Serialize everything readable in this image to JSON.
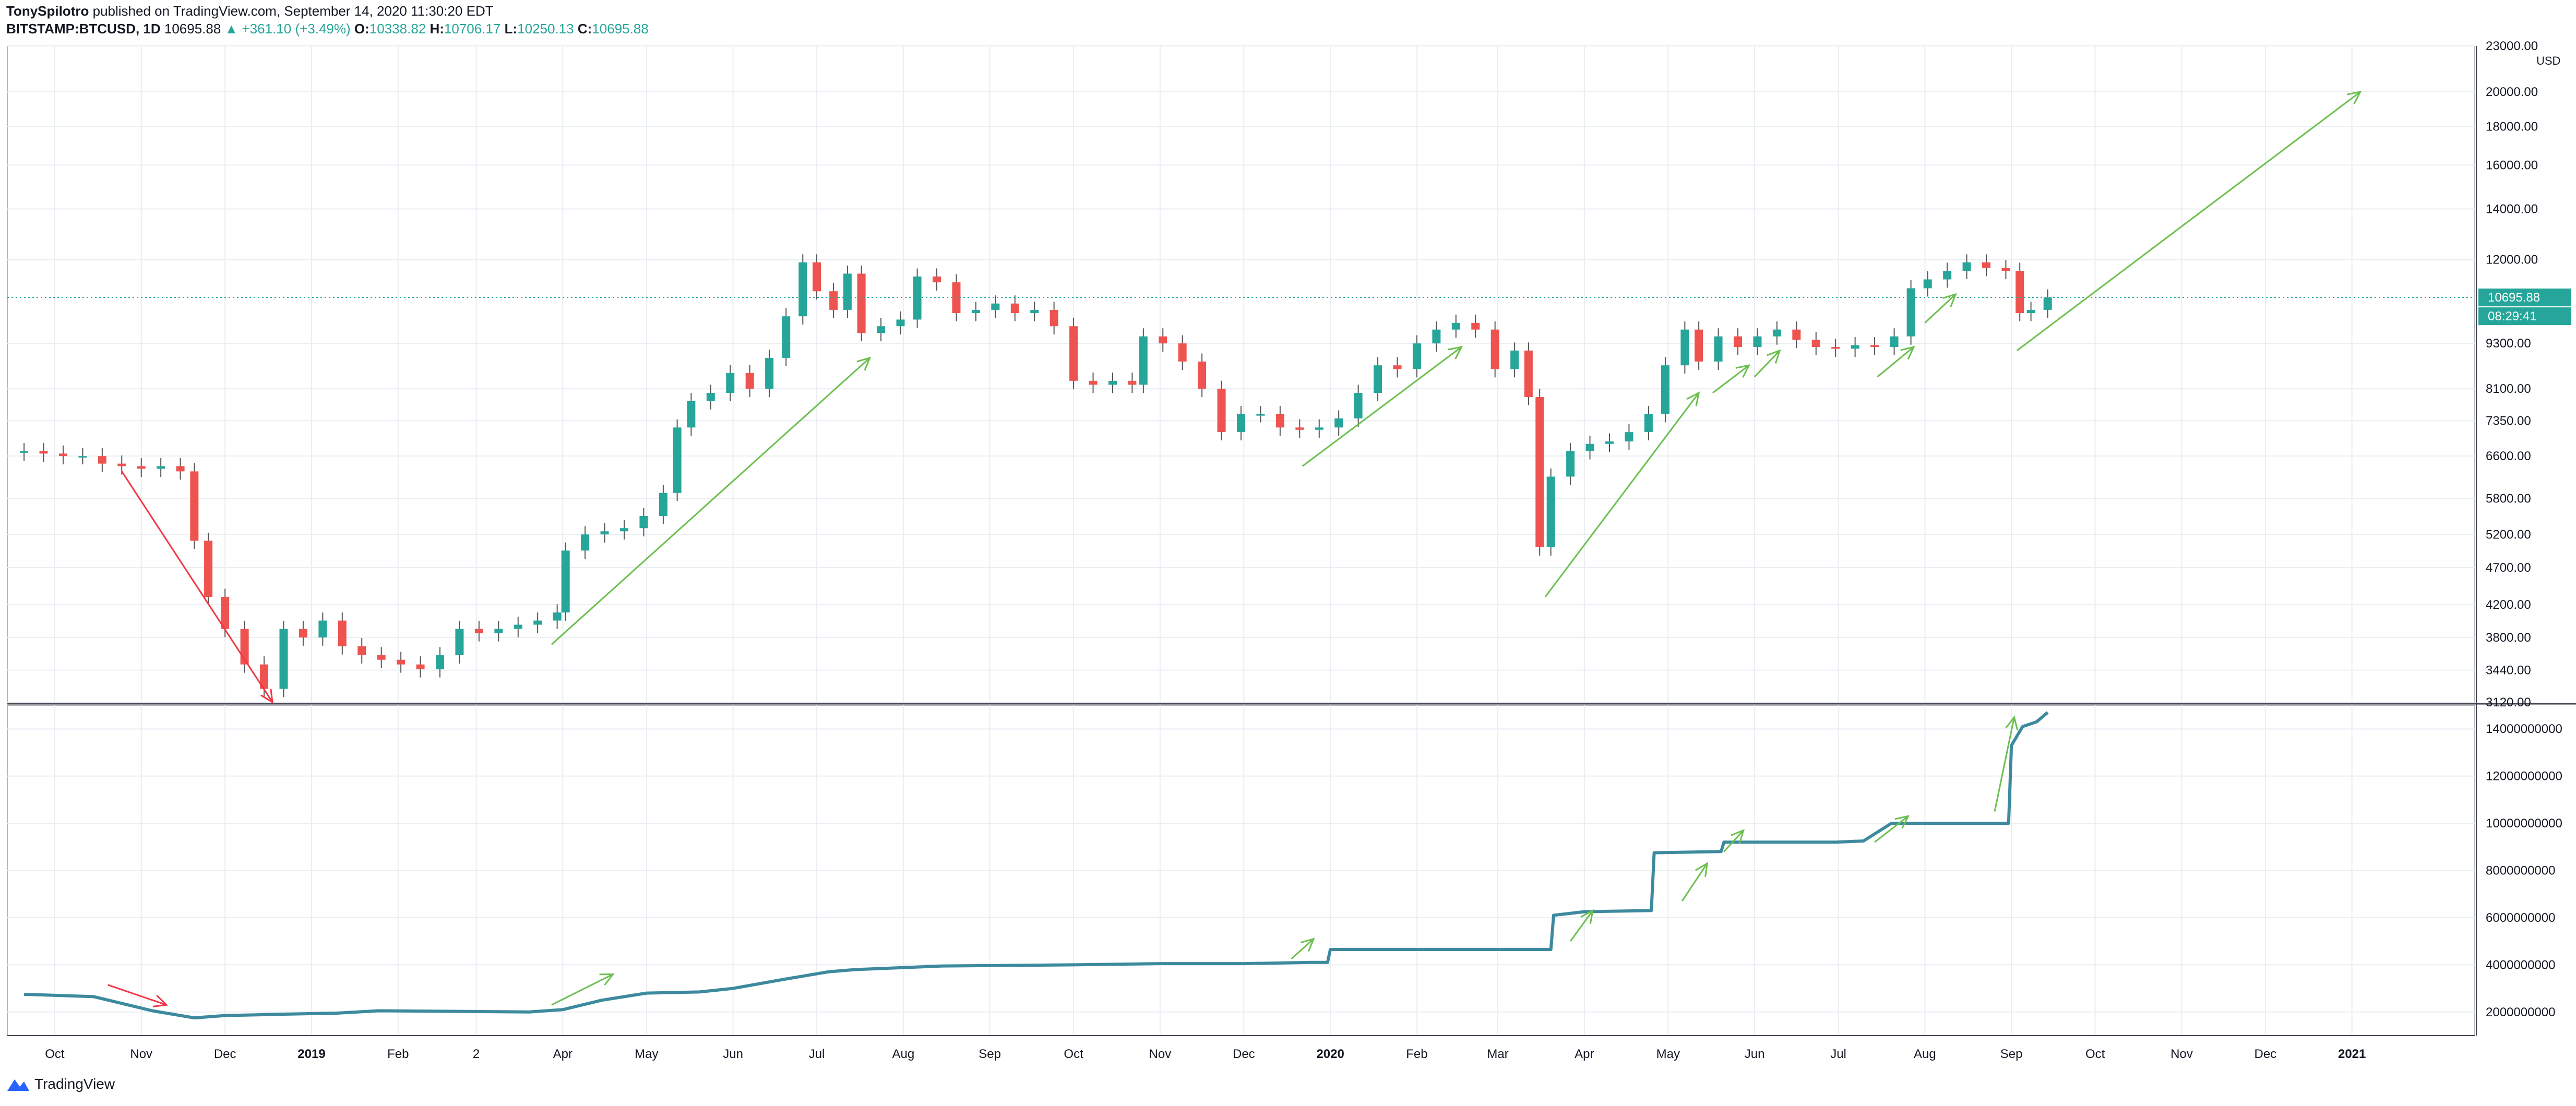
{
  "header": {
    "author": "TonySpilotro",
    "published": "published on TradingView.com, September 14, 2020 11:30:20 EDT",
    "symbol": "BITSTAMP:BTCUSD, 1D",
    "last": "10695.88",
    "change": "+361.10 (+3.49%)",
    "o_label": "O:",
    "o": "10338.82",
    "h_label": "H:",
    "h": "10706.17",
    "l_label": "L:",
    "l": "10250.13",
    "c_label": "C:",
    "c": "10695.88"
  },
  "footer": {
    "brand": "TradingView"
  },
  "chart_data": [
    {
      "type": "line",
      "subtype": "candlestick",
      "symbol": "BITSTAMP:BTCUSD",
      "interval": "1D",
      "scale": "log",
      "currency_label": "USD",
      "ylim": [
        3120,
        23000
      ],
      "y_ticks": [
        "23000.00",
        "20000.00",
        "18000.00",
        "16000.00",
        "14000.00",
        "12000.00",
        "9300.00",
        "8100.00",
        "7350.00",
        "6600.00",
        "5800.00",
        "5200.00",
        "4700.00",
        "4200.00",
        "3800.00",
        "3440.00",
        "3120.00"
      ],
      "last_price_label": "10695.88",
      "countdown_label": "08:29:41",
      "grid": true,
      "x": [
        "2018-09-20",
        "2018-09-27",
        "2018-10-04",
        "2018-10-11",
        "2018-10-18",
        "2018-10-25",
        "2018-11-01",
        "2018-11-08",
        "2018-11-15",
        "2018-11-20",
        "2018-11-25",
        "2018-12-01",
        "2018-12-08",
        "2018-12-15",
        "2018-12-22",
        "2018-12-29",
        "2019-01-05",
        "2019-01-12",
        "2019-01-19",
        "2019-01-26",
        "2019-02-02",
        "2019-02-09",
        "2019-02-16",
        "2019-02-23",
        "2019-03-02",
        "2019-03-09",
        "2019-03-16",
        "2019-03-23",
        "2019-03-30",
        "2019-04-02",
        "2019-04-09",
        "2019-04-16",
        "2019-04-23",
        "2019-04-30",
        "2019-05-07",
        "2019-05-12",
        "2019-05-17",
        "2019-05-24",
        "2019-05-31",
        "2019-06-07",
        "2019-06-14",
        "2019-06-20",
        "2019-06-26",
        "2019-07-01",
        "2019-07-07",
        "2019-07-12",
        "2019-07-17",
        "2019-07-24",
        "2019-07-31",
        "2019-08-06",
        "2019-08-13",
        "2019-08-20",
        "2019-08-27",
        "2019-09-03",
        "2019-09-10",
        "2019-09-17",
        "2019-09-24",
        "2019-10-01",
        "2019-10-08",
        "2019-10-15",
        "2019-10-22",
        "2019-10-26",
        "2019-11-02",
        "2019-11-09",
        "2019-11-16",
        "2019-11-23",
        "2019-11-30",
        "2019-12-07",
        "2019-12-14",
        "2019-12-21",
        "2019-12-28",
        "2020-01-04",
        "2020-01-11",
        "2020-01-18",
        "2020-01-25",
        "2020-02-01",
        "2020-02-08",
        "2020-02-15",
        "2020-02-22",
        "2020-02-29",
        "2020-03-07",
        "2020-03-12",
        "2020-03-16",
        "2020-03-20",
        "2020-03-27",
        "2020-04-03",
        "2020-04-10",
        "2020-04-17",
        "2020-04-24",
        "2020-04-30",
        "2020-05-07",
        "2020-05-12",
        "2020-05-19",
        "2020-05-26",
        "2020-06-02",
        "2020-06-09",
        "2020-06-16",
        "2020-06-23",
        "2020-06-30",
        "2020-07-07",
        "2020-07-14",
        "2020-07-21",
        "2020-07-27",
        "2020-08-02",
        "2020-08-09",
        "2020-08-16",
        "2020-08-23",
        "2020-08-30",
        "2020-09-04",
        "2020-09-08",
        "2020-09-14"
      ],
      "close": [
        6700,
        6650,
        6600,
        6600,
        6450,
        6400,
        6350,
        6400,
        6300,
        5100,
        4300,
        3900,
        3500,
        3250,
        3900,
        3800,
        4000,
        3700,
        3600,
        3550,
        3500,
        3450,
        3600,
        3900,
        3850,
        3900,
        3950,
        4000,
        4100,
        4950,
        5200,
        5250,
        5300,
        5500,
        5900,
        7200,
        7800,
        8000,
        8500,
        8100,
        8900,
        10100,
        11900,
        10900,
        10300,
        11500,
        9600,
        9800,
        10000,
        11400,
        11200,
        10200,
        10300,
        10500,
        10200,
        10300,
        9800,
        8300,
        8200,
        8300,
        8200,
        9500,
        9300,
        8800,
        8100,
        7100,
        7500,
        7500,
        7200,
        7150,
        7200,
        7400,
        8000,
        8700,
        8600,
        9300,
        9700,
        9900,
        9700,
        8600,
        9100,
        7900,
        5000,
        6200,
        6700,
        6850,
        6900,
        7100,
        7500,
        8700,
        9700,
        8800,
        9500,
        9200,
        9500,
        9700,
        9400,
        9200,
        9150,
        9250,
        9200,
        9500,
        11000,
        11300,
        11600,
        11900,
        11700,
        11600,
        10200,
        10300,
        10695.88
      ],
      "annotations": [
        {
          "type": "arrow",
          "direction": "down",
          "color": "#f23645"
        },
        {
          "type": "arrow",
          "direction": "up",
          "color": "#6bbf4e"
        },
        {
          "type": "arrow",
          "direction": "up",
          "color": "#6bbf4e"
        },
        {
          "type": "arrow",
          "direction": "up",
          "color": "#6bbf4e"
        },
        {
          "type": "arrow",
          "direction": "up",
          "color": "#6bbf4e"
        },
        {
          "type": "arrow",
          "direction": "up",
          "color": "#6bbf4e"
        },
        {
          "type": "arrow",
          "direction": "up",
          "color": "#6bbf4e"
        },
        {
          "type": "arrow",
          "direction": "up",
          "color": "#6bbf4e"
        },
        {
          "type": "arrow",
          "direction": "up",
          "color": "#6bbf4e"
        }
      ]
    },
    {
      "type": "line",
      "ylim": [
        1000000000,
        15000000000
      ],
      "y_ticks": [
        "14000000000",
        "12000000000",
        "10000000000",
        "8000000000",
        "6000000000",
        "4000000000",
        "2000000000"
      ],
      "x": [
        "2018-09-20",
        "2018-10-15",
        "2018-11-05",
        "2018-11-20",
        "2018-12-01",
        "2018-12-20",
        "2019-01-10",
        "2019-01-25",
        "2019-03-20",
        "2019-04-01",
        "2019-04-15",
        "2019-05-01",
        "2019-05-20",
        "2019-06-01",
        "2019-06-20",
        "2019-07-05",
        "2019-07-15",
        "2019-08-15",
        "2019-10-01",
        "2019-11-01",
        "2019-12-01",
        "2019-12-25",
        "2019-12-31",
        "2020-01-01",
        "2020-03-20",
        "2020-03-21",
        "2020-04-01",
        "2020-04-25",
        "2020-04-26",
        "2020-05-20",
        "2020-05-21",
        "2020-06-30",
        "2020-07-10",
        "2020-07-20",
        "2020-08-15",
        "2020-08-31",
        "2020-09-01",
        "2020-09-05",
        "2020-09-10",
        "2020-09-14"
      ],
      "values": [
        2750000000,
        2650000000,
        2050000000,
        1750000000,
        1850000000,
        1900000000,
        1950000000,
        2050000000,
        2000000000,
        2100000000,
        2500000000,
        2800000000,
        2850000000,
        3000000000,
        3400000000,
        3700000000,
        3800000000,
        3950000000,
        4000000000,
        4050000000,
        4050000000,
        4100000000,
        4100000000,
        4650000000,
        4650000000,
        6100000000,
        6250000000,
        6300000000,
        8750000000,
        8800000000,
        9200000000,
        9200000000,
        9250000000,
        10000000000,
        10000000000,
        10000000000,
        13300000000,
        14100000000,
        14300000000,
        14700000000
      ],
      "annotations": [
        {
          "type": "arrow",
          "direction": "down",
          "color": "#f23645"
        },
        {
          "type": "arrow",
          "direction": "up",
          "color": "#6bbf4e"
        },
        {
          "type": "arrow",
          "direction": "up",
          "color": "#6bbf4e"
        },
        {
          "type": "arrow",
          "direction": "up",
          "color": "#6bbf4e"
        },
        {
          "type": "arrow",
          "direction": "up",
          "color": "#6bbf4e"
        },
        {
          "type": "arrow",
          "direction": "up",
          "color": "#6bbf4e"
        },
        {
          "type": "arrow",
          "direction": "up",
          "color": "#6bbf4e"
        },
        {
          "type": "arrow",
          "direction": "up",
          "color": "#6bbf4e"
        }
      ]
    }
  ],
  "time_axis": [
    "Oct",
    "Nov",
    "Dec",
    "2019",
    "Feb",
    "2",
    "Apr",
    "May",
    "Jun",
    "Jul",
    "Aug",
    "Sep",
    "Oct",
    "Nov",
    "Dec",
    "2020",
    "Feb",
    "Mar",
    "Apr",
    "May",
    "Jun",
    "Jul",
    "Aug",
    "Sep",
    "Oct",
    "Nov",
    "Dec",
    "2021"
  ],
  "colors": {
    "up": "#26a69a",
    "down": "#ef5350",
    "wick": "#555555",
    "arrow_up": "#6bbf4e",
    "arrow_down": "#f23645",
    "line": "#3d8a9e",
    "line_early": "#7b6fb0",
    "grid": "#e9eef3",
    "price_tag": "#26a69a"
  }
}
